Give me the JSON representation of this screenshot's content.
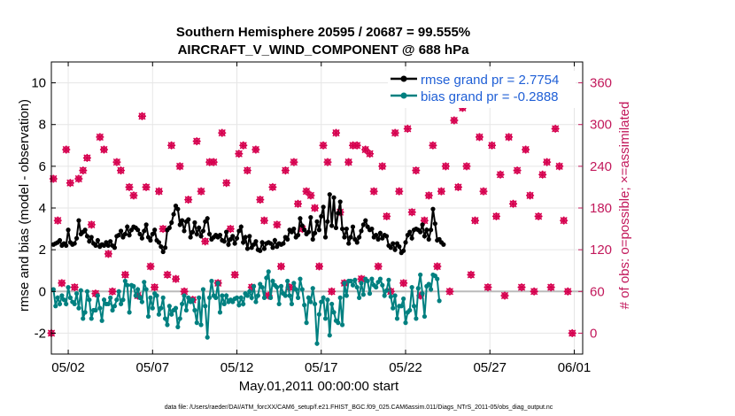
{
  "chart_data": {
    "type": "line",
    "title": "Southern Hemisphere 20595 / 20687 = 99.555%",
    "subtitle": "AIRCRAFT_V_WIND_COMPONENT @ 688 hPa",
    "xlabel": "May.01,2011 00:00:00 start",
    "ylabel": "rmse and bias (model - observation)",
    "y2label": "# of obs: o=possible; ×=assimilated",
    "footnote": "data file: /Users/raeder/DAI/ATM_forcXX/CAM6_setup/f.e21.FHIST_BGC.f09_025.CAM6assim.011/Diags_NTrS_2011-05/obs_diag_output.nc",
    "xlim": [
      0,
      31.5
    ],
    "ylim": [
      -3,
      11
    ],
    "y2lim": [
      -30,
      390
    ],
    "x_ticks": [
      1,
      6,
      11,
      16,
      21,
      26,
      31
    ],
    "x_ticklabels": [
      "05/02",
      "05/07",
      "05/12",
      "05/17",
      "05/22",
      "05/27",
      "06/01"
    ],
    "y_ticks": [
      -2,
      0,
      2,
      4,
      6,
      8,
      10
    ],
    "y_ticklabels": [
      "-2",
      "0",
      "2",
      "4",
      "6",
      "8",
      "10"
    ],
    "y2_ticks": [
      0,
      60,
      120,
      180,
      240,
      300,
      360
    ],
    "y2_ticklabels": [
      "0",
      "60",
      "120",
      "180",
      "240",
      "300",
      "360"
    ],
    "grid": true,
    "colors": {
      "rmse": "#000000",
      "bias": "#008080",
      "obs": "#d6004f",
      "zero_line": "#bbbbbb",
      "legend_text": "#1f5fd6",
      "right_axis": "#c2185b"
    },
    "series": [
      {
        "name": "rmse grand pr = 2.7754",
        "values": [
          2.25,
          2.3,
          2.35,
          2.45,
          2.2,
          2.3,
          2.2,
          2.95,
          2.35,
          2.25,
          2.3,
          2.55,
          3.4,
          2.75,
          2.85,
          2.95,
          2.65,
          2.4,
          2.6,
          2.3,
          2.2,
          2.45,
          2.15,
          2.25,
          2.2,
          2.35,
          2.2,
          2.4,
          2.2,
          2.1,
          2.65,
          2.7,
          2.9,
          2.6,
          2.75,
          3.1,
          2.7,
          2.95,
          3.1,
          3.05,
          2.95,
          2.75,
          2.55,
          2.9,
          3.2,
          2.6,
          2.45,
          2.75,
          2.95,
          2.45,
          2.35,
          2.15,
          1.9,
          2.1,
          2.95,
          3.05,
          3.3,
          3.7,
          4.1,
          3.95,
          3.2,
          3.4,
          2.9,
          3.35,
          3.45,
          2.6,
          2.85,
          3.3,
          2.75,
          3.05,
          2.65,
          2.9,
          3.35,
          3.5,
          2.75,
          2.5,
          2.6,
          2.7,
          2.6,
          2.7,
          2.45,
          2.4,
          2.85,
          2.25,
          2.5,
          2.65,
          2.3,
          2.55,
          2.9,
          3.1,
          2.35,
          2.6,
          2.05,
          2.65,
          2.1,
          2.25,
          2.4,
          2.0,
          1.95,
          2.35,
          2.05,
          2.3,
          2.35,
          2.3,
          2.1,
          2.45,
          2.15,
          2.3,
          2.25,
          2.3,
          2.6,
          2.5,
          2.95,
          2.85,
          3.0,
          2.6,
          2.7,
          3.5,
          3.15,
          2.95,
          2.75,
          2.85,
          3.55,
          2.5,
          2.8,
          3.35,
          2.95,
          3.6,
          4.05,
          2.6,
          3.35,
          4.65,
          3.15,
          4.5,
          3.05,
          3.75,
          4.3,
          3.0,
          2.6,
          3.0,
          2.3,
          2.6,
          3.1,
          2.5,
          2.35,
          2.6,
          2.9,
          3.2,
          3.4,
          3.1,
          2.95,
          3.0,
          2.6,
          2.7,
          2.5,
          2.8,
          2.55,
          2.7,
          2.65,
          2.2,
          2.1,
          2.3,
          2.0,
          2.3,
          2.15,
          1.85,
          1.95,
          2.35,
          2.7,
          2.85,
          2.55,
          2.95,
          3.0,
          2.95,
          2.85,
          3.2,
          2.65,
          2.95,
          2.5,
          2.95,
          3.95,
          3.25,
          2.45,
          2.5,
          2.35,
          2.25
        ],
        "x_start": 0.125,
        "x_step": 0.125
      },
      {
        "name": "bias grand pr = -0.2888",
        "values": [
          0.1,
          -0.7,
          -0.3,
          -0.6,
          -0.2,
          -0.4,
          -0.6,
          0.2,
          -0.3,
          -0.5,
          -0.6,
          -0.1,
          -0.8,
          0.05,
          -1.3,
          -1.0,
          0.0,
          -0.4,
          -1.3,
          -0.9,
          -0.9,
          -0.2,
          -0.8,
          -1.4,
          -0.4,
          -0.6,
          -0.6,
          -0.3,
          -0.9,
          -0.7,
          -0.4,
          0.0,
          -0.6,
          -0.4,
          0.5,
          0.3,
          -1.0,
          0.3,
          0.25,
          -0.2,
          0.1,
          -0.3,
          -0.5,
          0.45,
          0.1,
          -1.2,
          -0.3,
          -0.8,
          -0.1,
          -0.2,
          -1.1,
          -0.8,
          -0.3,
          -1.3,
          -1.6,
          -0.7,
          -1.1,
          -0.9,
          -0.8,
          -1.7,
          -1.3,
          -0.6,
          -0.2,
          -0.9,
          -0.3,
          -0.5,
          -0.4,
          -0.9,
          -1.5,
          -0.3,
          -1.6,
          0.1,
          -0.7,
          -2.2,
          -0.3,
          0.5,
          -0.2,
          -0.3,
          0.4,
          -1.0,
          -0.2,
          -0.6,
          -0.2,
          -0.5,
          -0.4,
          -0.5,
          -0.35,
          -0.3,
          -0.65,
          -0.3,
          -0.6,
          -0.1,
          -0.2,
          0.0,
          -0.3,
          0.25,
          -0.5,
          -0.2,
          0.35,
          0.2,
          -0.3,
          0.65,
          0.95,
          -0.3,
          0.5,
          0.3,
          0.2,
          -0.6,
          0.25,
          -0.1,
          -0.2,
          0.5,
          -0.2,
          -0.6,
          0.4,
          0.1,
          -0.3,
          0.6,
          0.1,
          -0.65,
          -1.5,
          -0.3,
          -0.5,
          0.15,
          -0.6,
          -2.5,
          -1.1,
          -0.5,
          -0.3,
          -1.3,
          -0.4,
          -2.1,
          -0.6,
          -1.0,
          -1.4,
          -1.5,
          -0.3,
          -1.6,
          0.4,
          -0.2,
          0.5,
          0.5,
          0.3,
          0.55,
          0.2,
          -0.3,
          0.4,
          -0.15,
          0.6,
          0.5,
          -0.1,
          0.6,
          0.3,
          0.2,
          0.45,
          0.6,
          0.3,
          -0.2,
          0.05,
          0.55,
          -0.25,
          -0.8,
          -0.2,
          -1.3,
          -0.7,
          -0.7,
          -0.35,
          -1.5,
          -1.0,
          -0.9,
          0.2,
          -0.7,
          -1.3,
          0.15,
          0.8,
          -0.1,
          -1.2,
          0.25,
          0.35,
          0.1,
          0.8,
          0.75,
          0.6,
          -0.45
        ],
        "x_start": 0.125,
        "x_step": 0.125
      }
    ],
    "obs_counts": {
      "name": "# of obs (right axis)",
      "points": [
        [
          0.0,
          0
        ],
        [
          0.12,
          222
        ],
        [
          0.38,
          162
        ],
        [
          0.62,
          72
        ],
        [
          0.88,
          264
        ],
        [
          1.12,
          216
        ],
        [
          1.38,
          66
        ],
        [
          1.62,
          222
        ],
        [
          1.88,
          234
        ],
        [
          2.12,
          252
        ],
        [
          2.38,
          156
        ],
        [
          2.62,
          57
        ],
        [
          2.88,
          282
        ],
        [
          3.12,
          264
        ],
        [
          3.38,
          114
        ],
        [
          3.62,
          60
        ],
        [
          3.88,
          246
        ],
        [
          4.12,
          234
        ],
        [
          4.38,
          84
        ],
        [
          4.62,
          210
        ],
        [
          4.88,
          198
        ],
        [
          5.12,
          54
        ],
        [
          5.38,
          312
        ],
        [
          5.62,
          210
        ],
        [
          5.88,
          96
        ],
        [
          6.12,
          66
        ],
        [
          6.38,
          204
        ],
        [
          6.62,
          150
        ],
        [
          6.88,
          84
        ],
        [
          7.12,
          270
        ],
        [
          7.38,
          78
        ],
        [
          7.62,
          240
        ],
        [
          7.88,
          60
        ],
        [
          8.12,
          192
        ],
        [
          8.38,
          48
        ],
        [
          8.62,
          276
        ],
        [
          8.88,
          204
        ],
        [
          9.12,
          132
        ],
        [
          9.38,
          246
        ],
        [
          9.62,
          246
        ],
        [
          9.88,
          72
        ],
        [
          10.12,
          288
        ],
        [
          10.38,
          216
        ],
        [
          10.62,
          150
        ],
        [
          10.88,
          84
        ],
        [
          11.12,
          258
        ],
        [
          11.38,
          270
        ],
        [
          11.62,
          234
        ],
        [
          11.88,
          66
        ],
        [
          12.12,
          264
        ],
        [
          12.38,
          192
        ],
        [
          12.62,
          162
        ],
        [
          12.88,
          54
        ],
        [
          13.12,
          210
        ],
        [
          13.38,
          156
        ],
        [
          13.62,
          96
        ],
        [
          13.88,
          234
        ],
        [
          14.12,
          66
        ],
        [
          14.38,
          246
        ],
        [
          14.62,
          186
        ],
        [
          14.88,
          150
        ],
        [
          15.12,
          204
        ],
        [
          15.38,
          198
        ],
        [
          15.62,
          180
        ],
        [
          15.88,
          96
        ],
        [
          16.12,
          270
        ],
        [
          16.38,
          246
        ],
        [
          16.62,
          60
        ],
        [
          16.88,
          288
        ],
        [
          17.12,
          174
        ],
        [
          17.38,
          72
        ],
        [
          17.62,
          246
        ],
        [
          17.88,
          270
        ],
        [
          18.12,
          270
        ],
        [
          18.38,
          78
        ],
        [
          18.62,
          264
        ],
        [
          18.88,
          258
        ],
        [
          19.12,
          204
        ],
        [
          19.38,
          96
        ],
        [
          19.62,
          240
        ],
        [
          19.88,
          168
        ],
        [
          20.12,
          60
        ],
        [
          20.38,
          288
        ],
        [
          20.62,
          204
        ],
        [
          20.88,
          72
        ],
        [
          21.12,
          294
        ],
        [
          21.38,
          174
        ],
        [
          21.62,
          234
        ],
        [
          21.88,
          54
        ],
        [
          22.12,
          162
        ],
        [
          22.38,
          198
        ],
        [
          22.62,
          270
        ],
        [
          22.88,
          96
        ],
        [
          23.12,
          204
        ],
        [
          23.38,
          240
        ],
        [
          23.62,
          60
        ],
        [
          23.88,
          306
        ],
        [
          24.12,
          210
        ],
        [
          24.38,
          324
        ],
        [
          24.62,
          240
        ],
        [
          24.88,
          84
        ],
        [
          25.12,
          162
        ],
        [
          25.38,
          282
        ],
        [
          25.62,
          204
        ],
        [
          25.88,
          66
        ],
        [
          26.12,
          270
        ],
        [
          26.38,
          168
        ],
        [
          26.62,
          228
        ],
        [
          26.88,
          54
        ],
        [
          27.12,
          282
        ],
        [
          27.38,
          186
        ],
        [
          27.62,
          234
        ],
        [
          27.88,
          66
        ],
        [
          28.12,
          264
        ],
        [
          28.38,
          198
        ],
        [
          28.62,
          60
        ],
        [
          28.88,
          168
        ],
        [
          29.12,
          228
        ],
        [
          29.38,
          246
        ],
        [
          29.62,
          66
        ],
        [
          29.88,
          294
        ],
        [
          30.12,
          240
        ],
        [
          30.38,
          162
        ],
        [
          30.62,
          60
        ],
        [
          30.88,
          0
        ]
      ]
    }
  }
}
